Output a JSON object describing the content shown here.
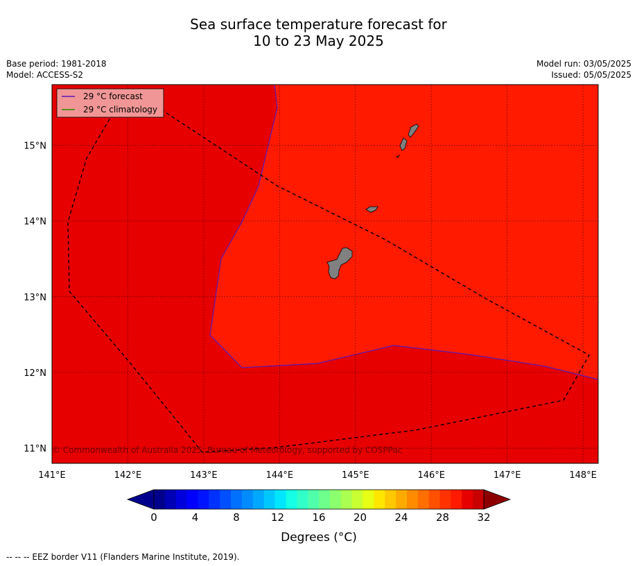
{
  "title_line1": "Sea surface temperature forecast for",
  "title_line2": "10 to 23 May 2025",
  "base_period": "Base period: 1981-2018",
  "model": "Model: ACCESS-S2",
  "model_run": "Model run: 03/05/2025",
  "issued": "Issued: 05/05/2025",
  "map": {
    "lon_ticks": [
      "141°E",
      "142°E",
      "143°E",
      "144°E",
      "145°E",
      "146°E",
      "147°E",
      "148°E"
    ],
    "lat_ticks": [
      "15°N",
      "14°N",
      "13°N",
      "12°N",
      "11°N"
    ],
    "lon_range": [
      141,
      148.2
    ],
    "lat_range": [
      10.8,
      15.8
    ],
    "grid": true,
    "region_colors": {
      "above_29": "#ff1a00",
      "below_29": "#e60000"
    },
    "land_color": "#808080",
    "legend_position": "top-left",
    "legend": [
      {
        "label": "29 °C  forecast",
        "color": "#5a19b4"
      },
      {
        "label": "29 °C  climatology",
        "color": "#2b8a00"
      }
    ],
    "copyright": "© Commonwealth of Australia 2025, Bureau of Meteorology, supported by COSPPac"
  },
  "colorbar": {
    "ticks": [
      "0",
      "4",
      "8",
      "12",
      "16",
      "20",
      "24",
      "28",
      "32"
    ],
    "label": "Degrees (°C)",
    "colors": [
      "#00008c",
      "#0000b4",
      "#0000dc",
      "#0000ff",
      "#0014ff",
      "#0032ff",
      "#0050ff",
      "#0070ff",
      "#008cff",
      "#00a8ff",
      "#00c8ff",
      "#00e6ff",
      "#14ffe6",
      "#32ffc8",
      "#50ffaa",
      "#6eff8c",
      "#8cff6e",
      "#aaff50",
      "#c8ff32",
      "#e6ff14",
      "#ffe600",
      "#ffc800",
      "#ffaa00",
      "#ff8c00",
      "#ff6e00",
      "#ff5000",
      "#ff3200",
      "#ff1a00",
      "#e60000",
      "#c80000"
    ],
    "under_color": "#00008c",
    "over_color": "#8c0000"
  },
  "footnote": "--  --  -- EEZ border V11 (Flanders Marine Institute, 2019)."
}
